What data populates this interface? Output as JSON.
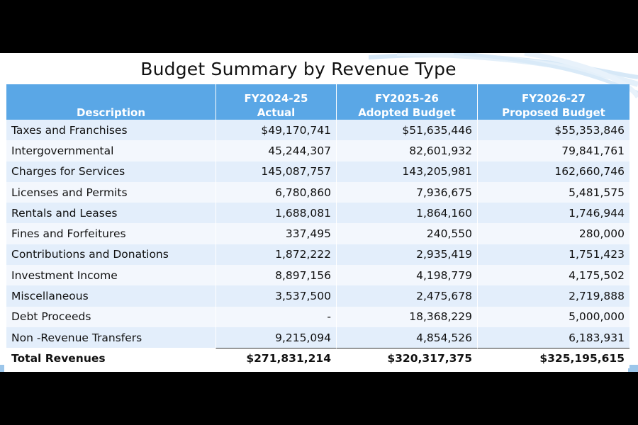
{
  "title": "Budget Summary by Revenue Type",
  "table": {
    "headers": [
      {
        "line1": "",
        "line2": "Description"
      },
      {
        "line1": "FY2024-25",
        "line2": "Actual"
      },
      {
        "line1": "FY2025-26",
        "line2": "Adopted Budget"
      },
      {
        "line1": "FY2026-27",
        "line2": "Proposed Budget"
      }
    ],
    "rows": [
      [
        "Taxes and Franchises",
        "$49,170,741",
        "$51,635,446",
        "$55,353,846"
      ],
      [
        "Intergovernmental",
        "45,244,307",
        "82,601,932",
        "79,841,761"
      ],
      [
        "Charges for Services",
        "145,087,757",
        "143,205,981",
        "162,660,746"
      ],
      [
        "Licenses and Permits",
        "6,780,860",
        "7,936,675",
        "5,481,575"
      ],
      [
        "Rentals and Leases",
        "1,688,081",
        "1,864,160",
        "1,746,944"
      ],
      [
        "Fines and Forfeitures",
        "337,495",
        "240,550",
        "280,000"
      ],
      [
        "Contributions and Donations",
        "1,872,222",
        "2,935,419",
        "1,751,423"
      ],
      [
        "Investment Income",
        "8,897,156",
        "4,198,779",
        "4,175,502"
      ],
      [
        "Miscellaneous",
        "3,537,500",
        "2,475,678",
        "2,719,888"
      ],
      [
        "Debt Proceeds",
        "-",
        "18,368,229",
        "5,000,000"
      ],
      [
        "Non -Revenue Transfers",
        "9,215,094",
        "4,854,526",
        "6,183,931"
      ]
    ],
    "total": [
      "Total Revenues",
      "$271,831,214",
      "$320,317,375",
      "$325,195,615"
    ]
  }
}
